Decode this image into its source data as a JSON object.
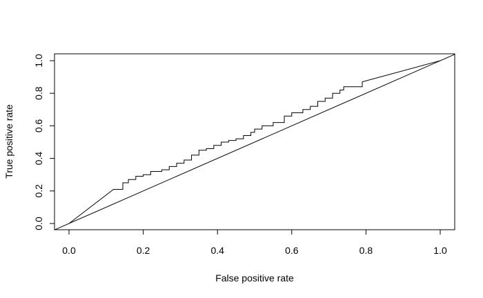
{
  "chart_data": {
    "type": "line",
    "title": "",
    "xlabel": "False positive rate",
    "ylabel": "True positive rate",
    "xlim": [
      0,
      1
    ],
    "ylim": [
      0,
      1
    ],
    "grid": false,
    "x_ticks": [
      0.0,
      0.2,
      0.4,
      0.6,
      0.8,
      1.0
    ],
    "y_ticks": [
      0.0,
      0.2,
      0.4,
      0.6,
      0.8,
      1.0
    ],
    "x_tick_labels": [
      "0.0",
      "0.2",
      "0.4",
      "0.6",
      "0.8",
      "1.0"
    ],
    "y_tick_labels": [
      "0.0",
      "0.2",
      "0.4",
      "0.6",
      "0.8",
      "1.0"
    ],
    "series": [
      {
        "type": "step",
        "x": [
          0.0,
          0.12,
          0.14,
          0.145,
          0.16,
          0.18,
          0.2,
          0.22,
          0.25,
          0.27,
          0.29,
          0.31,
          0.33,
          0.35,
          0.37,
          0.39,
          0.41,
          0.43,
          0.45,
          0.47,
          0.49,
          0.5,
          0.52,
          0.55,
          0.58,
          0.6,
          0.63,
          0.65,
          0.67,
          0.69,
          0.71,
          0.73,
          0.74,
          0.79,
          1.0
        ],
        "y": [
          0.0,
          0.21,
          0.21,
          0.25,
          0.27,
          0.29,
          0.3,
          0.32,
          0.33,
          0.35,
          0.37,
          0.39,
          0.42,
          0.45,
          0.46,
          0.48,
          0.5,
          0.51,
          0.52,
          0.54,
          0.56,
          0.58,
          0.6,
          0.62,
          0.66,
          0.68,
          0.7,
          0.72,
          0.75,
          0.77,
          0.8,
          0.82,
          0.84,
          0.87,
          1.0
        ]
      },
      {
        "type": "line",
        "x": [
          -0.04,
          1.04
        ],
        "y": [
          -0.04,
          1.04
        ]
      }
    ]
  }
}
